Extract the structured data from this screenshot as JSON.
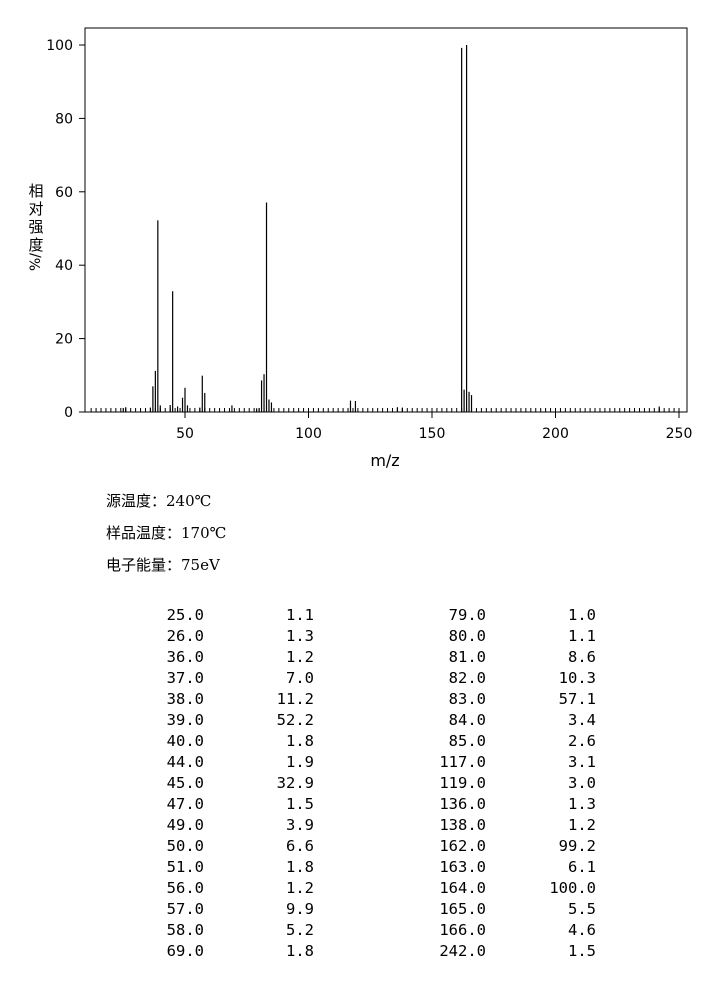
{
  "chart_data": {
    "type": "bar",
    "title": "",
    "xlabel": "m/z",
    "ylabel": "相对强度%/",
    "xlim": [
      10,
      252
    ],
    "ylim": [
      0,
      105
    ],
    "xticks": [
      50,
      100,
      150,
      200,
      250
    ],
    "yticks": [
      0,
      20,
      40,
      60,
      80,
      100
    ],
    "grid": false,
    "peaks": [
      {
        "x": 25,
        "y": 1.1
      },
      {
        "x": 26,
        "y": 1.3
      },
      {
        "x": 36,
        "y": 1.2
      },
      {
        "x": 37,
        "y": 7.0
      },
      {
        "x": 38,
        "y": 11.2
      },
      {
        "x": 39,
        "y": 52.2
      },
      {
        "x": 40,
        "y": 1.8
      },
      {
        "x": 44,
        "y": 1.9
      },
      {
        "x": 45,
        "y": 32.9
      },
      {
        "x": 47,
        "y": 1.5
      },
      {
        "x": 49,
        "y": 3.9
      },
      {
        "x": 50,
        "y": 6.6
      },
      {
        "x": 51,
        "y": 1.8
      },
      {
        "x": 56,
        "y": 1.2
      },
      {
        "x": 57,
        "y": 9.9
      },
      {
        "x": 58,
        "y": 5.2
      },
      {
        "x": 69,
        "y": 1.8
      },
      {
        "x": 79,
        "y": 1.0
      },
      {
        "x": 80,
        "y": 1.1
      },
      {
        "x": 81,
        "y": 8.6
      },
      {
        "x": 82,
        "y": 10.3
      },
      {
        "x": 83,
        "y": 57.1
      },
      {
        "x": 84,
        "y": 3.4
      },
      {
        "x": 85,
        "y": 2.6
      },
      {
        "x": 117,
        "y": 3.1
      },
      {
        "x": 119,
        "y": 3.0
      },
      {
        "x": 136,
        "y": 1.3
      },
      {
        "x": 138,
        "y": 1.2
      },
      {
        "x": 162,
        "y": 99.2
      },
      {
        "x": 163,
        "y": 6.1
      },
      {
        "x": 164,
        "y": 100.0
      },
      {
        "x": 165,
        "y": 5.5
      },
      {
        "x": 166,
        "y": 4.6
      },
      {
        "x": 242,
        "y": 1.5
      }
    ]
  },
  "conditions": [
    "源温度：240℃",
    "样品温度：170℃",
    "电子能量：75eV"
  ],
  "table": {
    "left": [
      [
        "25.0",
        "1.1"
      ],
      [
        "26.0",
        "1.3"
      ],
      [
        "36.0",
        "1.2"
      ],
      [
        "37.0",
        "7.0"
      ],
      [
        "38.0",
        "11.2"
      ],
      [
        "39.0",
        "52.2"
      ],
      [
        "40.0",
        "1.8"
      ],
      [
        "44.0",
        "1.9"
      ],
      [
        "45.0",
        "32.9"
      ],
      [
        "47.0",
        "1.5"
      ],
      [
        "49.0",
        "3.9"
      ],
      [
        "50.0",
        "6.6"
      ],
      [
        "51.0",
        "1.8"
      ],
      [
        "56.0",
        "1.2"
      ],
      [
        "57.0",
        "9.9"
      ],
      [
        "58.0",
        "5.2"
      ],
      [
        "69.0",
        "1.8"
      ]
    ],
    "right": [
      [
        "79.0",
        "1.0"
      ],
      [
        "80.0",
        "1.1"
      ],
      [
        "81.0",
        "8.6"
      ],
      [
        "82.0",
        "10.3"
      ],
      [
        "83.0",
        "57.1"
      ],
      [
        "84.0",
        "3.4"
      ],
      [
        "85.0",
        "2.6"
      ],
      [
        "117.0",
        "3.1"
      ],
      [
        "119.0",
        "3.0"
      ],
      [
        "136.0",
        "1.3"
      ],
      [
        "138.0",
        "1.2"
      ],
      [
        "162.0",
        "99.2"
      ],
      [
        "163.0",
        "6.1"
      ],
      [
        "164.0",
        "100.0"
      ],
      [
        "165.0",
        "5.5"
      ],
      [
        "166.0",
        "4.6"
      ],
      [
        "242.0",
        "1.5"
      ]
    ]
  }
}
